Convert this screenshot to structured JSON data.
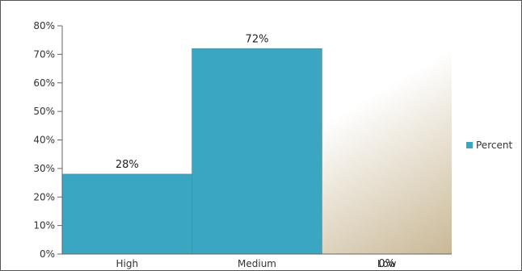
{
  "chart_data": {
    "type": "bar",
    "categories": [
      "High",
      "Medium",
      "Low"
    ],
    "series": [
      {
        "name": "Percent",
        "values": [
          28,
          72,
          0
        ],
        "color": "#3aa6c1"
      }
    ],
    "data_labels": [
      "28%",
      "72%",
      "0%"
    ],
    "y_tick_values": [
      0,
      10,
      20,
      30,
      40,
      50,
      60,
      70,
      80
    ],
    "y_tick_labels": [
      "0%",
      "10%",
      "20%",
      "30%",
      "40%",
      "50%",
      "60%",
      "70%",
      "80%"
    ],
    "ylim": [
      0,
      80
    ],
    "grid": false,
    "legend_position": "right",
    "plot_background": "gradient white to tan"
  }
}
